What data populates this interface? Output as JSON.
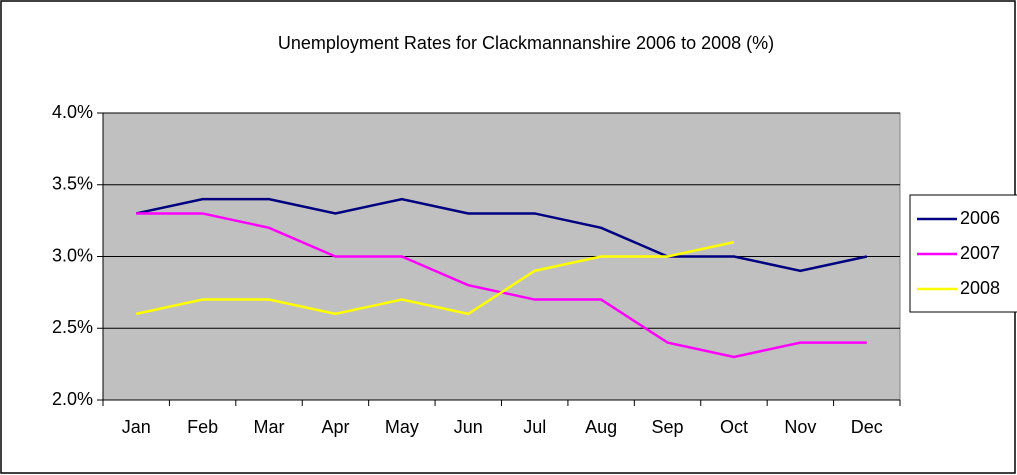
{
  "chart_data": {
    "type": "line",
    "title": "Unemployment Rates for Clackmannanshire 2006 to 2008 (%)",
    "categories": [
      "Jan",
      "Feb",
      "Mar",
      "Apr",
      "May",
      "Jun",
      "Jul",
      "Aug",
      "Sep",
      "Oct",
      "Nov",
      "Dec"
    ],
    "series": [
      {
        "name": "2006",
        "color": "#000080",
        "values": [
          3.3,
          3.4,
          3.4,
          3.3,
          3.4,
          3.3,
          3.3,
          3.2,
          3.0,
          3.0,
          2.9,
          3.0
        ]
      },
      {
        "name": "2007",
        "color": "#ff00ff",
        "values": [
          3.3,
          3.3,
          3.2,
          3.0,
          3.0,
          2.8,
          2.7,
          2.7,
          2.4,
          2.3,
          2.4,
          2.4
        ]
      },
      {
        "name": "2008",
        "color": "#ffff00",
        "values": [
          2.6,
          2.7,
          2.7,
          2.6,
          2.7,
          2.6,
          2.9,
          3.0,
          3.0,
          3.1,
          null,
          null
        ]
      }
    ],
    "ylim": [
      2.0,
      4.0
    ],
    "yticks": [
      {
        "value": 2.0,
        "label": "2.0%"
      },
      {
        "value": 2.5,
        "label": "2.5%"
      },
      {
        "value": 3.0,
        "label": "3.0%"
      },
      {
        "value": 3.5,
        "label": "3.5%"
      },
      {
        "value": 4.0,
        "label": "4.0%"
      }
    ],
    "grid": true,
    "plot_background": "#c0c0c0",
    "legend": "right"
  }
}
